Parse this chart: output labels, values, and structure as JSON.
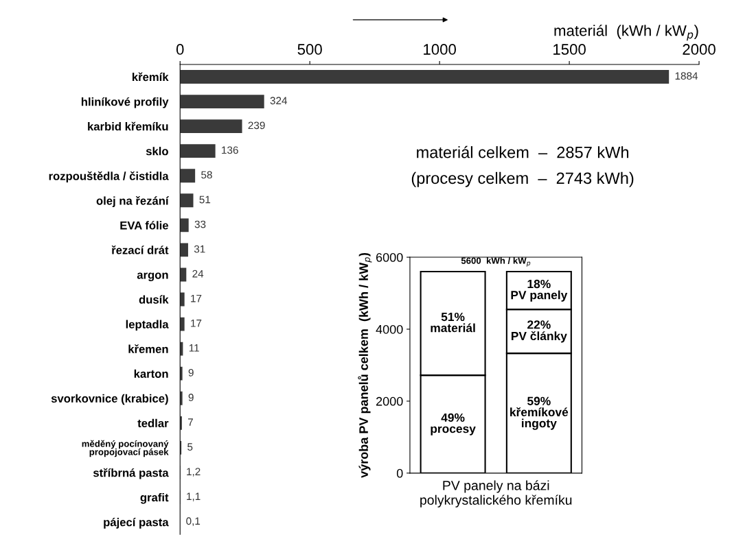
{
  "chart_data": [
    {
      "type": "bar",
      "orientation": "horizontal",
      "xlabel": "materiál  (kWh / kW$_{p}$)",
      "categories": [
        "křemík",
        "hliníkové profily",
        "karbid křemíku",
        "sklo",
        "rozpouštědla / čistidla",
        "olej na řezání",
        "EVA fólie",
        "řezací drát",
        "argon",
        "dusík",
        "leptadla",
        "křemen",
        "karton",
        "svorkovnice (krabice)",
        "tedlar",
        "měděný pocínovaný\npropojovací pásek",
        "stříbrná pasta",
        "grafit",
        "pájecí pasta"
      ],
      "values": [
        1884,
        324,
        239,
        136,
        58,
        51,
        33,
        31,
        24,
        17,
        17,
        11,
        9,
        9,
        7,
        5,
        1.2,
        1.1,
        0.1
      ],
      "value_labels": [
        "1884",
        "324",
        "239",
        "136",
        "58",
        "51",
        "33",
        "31",
        "24",
        "17",
        "17",
        "11",
        "9",
        "9",
        "7",
        "5",
        "1,2",
        "1,1",
        "0,1"
      ],
      "color": "#3a3a3a",
      "xlim": [
        0,
        2000
      ],
      "xticks": [
        0,
        500,
        1000,
        1500,
        2000
      ],
      "annotations": [
        "materiál celkem  –  2857 kWh",
        "(procesy celkem  –  2743 kWh)"
      ]
    },
    {
      "type": "bar",
      "stacked": true,
      "categories": [
        null,
        null
      ],
      "ylabel": "výroba PV panelů celkem  (kWh / kW$_{p}$)",
      "xlabel": "PV panely na bázi\npolykrystalického křemíku",
      "ylim": [
        0,
        6000
      ],
      "yticks": [
        0,
        2000,
        4000,
        6000
      ],
      "series": [
        {
          "color": "#ffffff",
          "values": [
            2720,
            3330
          ]
        },
        {
          "color": "#ffffff",
          "values": [
            2880,
            1220
          ]
        },
        {
          "color": "#ffffff",
          "values": [
            null,
            1050
          ]
        }
      ],
      "annotations": [
        "5600  kWh / kW$_{p}$",
        "49%\nprocesy",
        "51%\nmateriál",
        "59%\nkřemíkové\ningoty",
        "22%\nPV články",
        "18%\nPV panely"
      ]
    }
  ]
}
